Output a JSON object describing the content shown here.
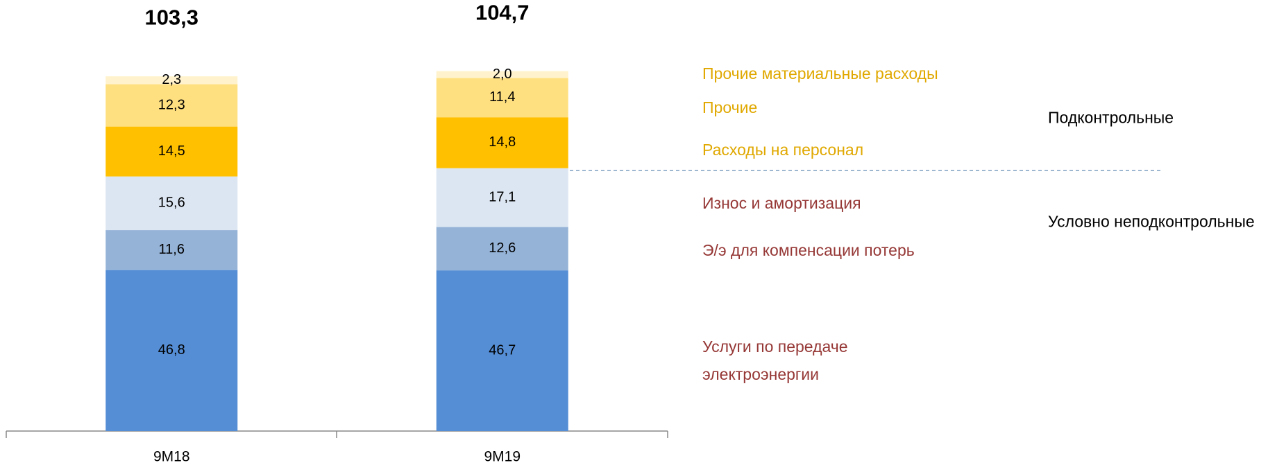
{
  "chart_data": {
    "type": "stacked_bar",
    "categories": [
      "9M18",
      "9M19"
    ],
    "ylim": [
      0,
      125
    ],
    "totals": [
      103.3,
      104.7
    ],
    "total_labels": [
      "103,3",
      "104,7"
    ],
    "series": [
      {
        "name": "Услуги по передаче электроэнергии",
        "color": "#558ed5",
        "label_color": "#953735",
        "values": [
          46.8,
          46.7
        ],
        "value_labels": [
          "46,8",
          "46,7"
        ]
      },
      {
        "name": "Э/э для компенсации потерь",
        "color": "#95b3d7",
        "label_color": "#953735",
        "values": [
          11.6,
          12.6
        ],
        "value_labels": [
          "11,6",
          "12,6"
        ]
      },
      {
        "name": "Износ и амортизация",
        "color": "#dce6f2",
        "label_color": "#953735",
        "values": [
          15.6,
          17.1
        ],
        "value_labels": [
          "15,6",
          "17,1"
        ]
      },
      {
        "name": "Расходы на персонал",
        "color": "#ffc000",
        "label_color": "#e0a800",
        "values": [
          14.5,
          14.8
        ],
        "value_labels": [
          "14,5",
          "14,8"
        ]
      },
      {
        "name": "Прочие",
        "color": "#ffe080",
        "label_color": "#e0a800",
        "values": [
          12.3,
          11.4
        ],
        "value_labels": [
          "12,3",
          "11,4"
        ]
      },
      {
        "name": "Прочие материальные расходы",
        "color": "#fff2cc",
        "label_color": "#e0a800",
        "values": [
          2.3,
          2.0
        ],
        "value_labels": [
          "2,3",
          "2,0"
        ]
      }
    ],
    "groups": [
      "Подконтрольные",
      "Условно неподконтрольные"
    ]
  }
}
